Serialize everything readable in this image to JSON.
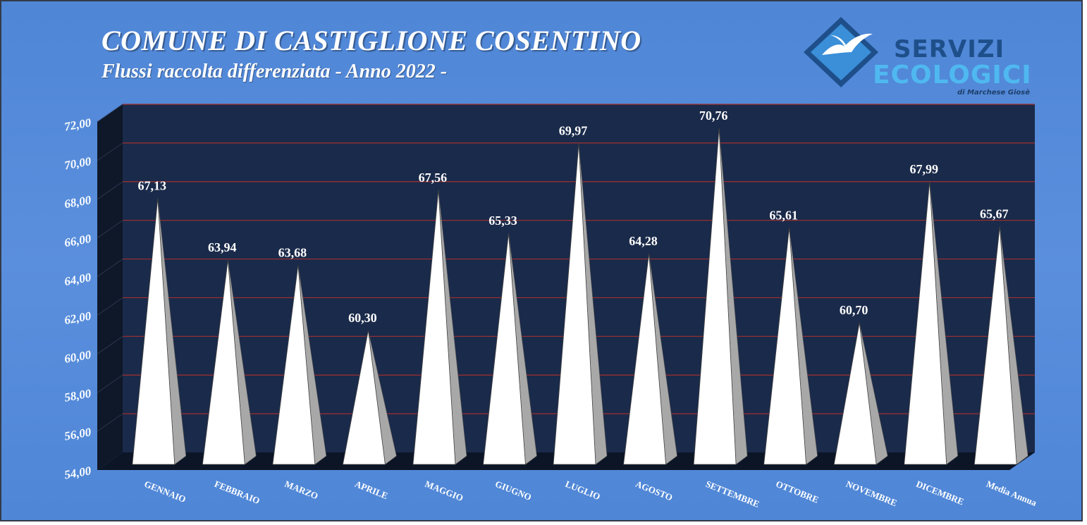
{
  "header": {
    "title": "COMUNE DI CASTIGLIONE COSENTINO",
    "subtitle": "Flussi raccolta differenziata - Anno 2022 -"
  },
  "logo": {
    "line1": "SERVIZI",
    "line2": "ECOLOGICI",
    "line3": "di Marchese Giosè",
    "icon": "seagull-diamond-icon"
  },
  "colors": {
    "background": "#4f86d6",
    "plot_area": "#1a2a4a",
    "gridline": "#a03030",
    "bar": "#ffffff",
    "bar_shadow": "#a8a8a8",
    "logo_dark": "#1e4f8a",
    "logo_light": "#4fb8f0"
  },
  "chart_data": {
    "type": "bar",
    "style": "3d-pyramid",
    "title": "COMUNE DI CASTIGLIONE COSENTINO",
    "subtitle": "Flussi raccolta differenziata - Anno 2022 -",
    "xlabel": "",
    "ylabel": "",
    "categories": [
      "GENNAIO",
      "FEBBRAIO",
      "MARZO",
      "APRILE",
      "MAGGIO",
      "GIUGNO",
      "LUGLIO",
      "AGOSTO",
      "SETTEMBRE",
      "OTTOBRE",
      "NOVEMBRE",
      "DICEMBRE",
      "Media Annua"
    ],
    "values": [
      67.13,
      63.94,
      63.68,
      60.3,
      67.56,
      65.33,
      69.97,
      64.28,
      70.76,
      65.61,
      60.7,
      67.99,
      65.67
    ],
    "value_labels": [
      "67,13",
      "63,94",
      "63,68",
      "60,30",
      "67,56",
      "65,33",
      "69,97",
      "64,28",
      "70,76",
      "65,61",
      "60,70",
      "67,99",
      "65,67"
    ],
    "ylim": [
      54,
      72
    ],
    "yticks": [
      54,
      56,
      58,
      60,
      62,
      64,
      66,
      68,
      70,
      72
    ],
    "ytick_labels": [
      "54,00",
      "56,00",
      "58,00",
      "60,00",
      "62,00",
      "64,00",
      "66,00",
      "68,00",
      "70,00",
      "72,00"
    ],
    "grid": true,
    "legend": "none"
  }
}
